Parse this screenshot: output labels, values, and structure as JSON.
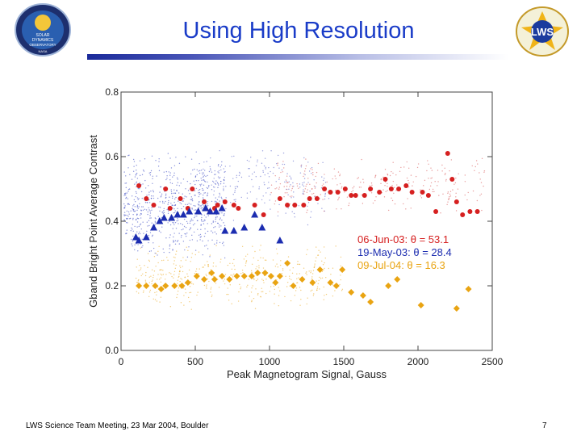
{
  "slide": {
    "title": "Using High Resolution",
    "footer_left": "LWS Science Team Meeting, 23 Mar 2004, Boulder",
    "page_number": "7",
    "logos": [
      {
        "name": "sdo-logo",
        "text_lines": [
          "SOLAR",
          "DYNAMICS",
          "OBSERVATORY",
          "NASA"
        ]
      },
      {
        "name": "lws-logo",
        "text_lines": [
          "LWS"
        ]
      }
    ]
  },
  "chart_data": {
    "type": "scatter",
    "xlabel": "Peak Magnetogram Signal, Gauss",
    "ylabel": "Gband Bright Point Average Contrast",
    "xlim": [
      0,
      2500
    ],
    "ylim": [
      0.0,
      0.8
    ],
    "xticks": [
      0,
      500,
      1000,
      1500,
      2000,
      2500
    ],
    "yticks": [
      0.0,
      0.2,
      0.4,
      0.6,
      0.8
    ],
    "xtick_labels": [
      "0",
      "500",
      "1000",
      "1500",
      "2000",
      "2500"
    ],
    "ytick_labels": [
      "0.0",
      "0.2",
      "0.4",
      "0.6",
      "0.8"
    ],
    "legend_position": "right-middle",
    "series": [
      {
        "name": "06-Jun-03: θ = 53.1",
        "color": "#d62020",
        "marker": "circle",
        "points": [
          [
            120,
            0.51
          ],
          [
            170,
            0.47
          ],
          [
            220,
            0.45
          ],
          [
            300,
            0.5
          ],
          [
            330,
            0.44
          ],
          [
            400,
            0.47
          ],
          [
            450,
            0.44
          ],
          [
            480,
            0.5
          ],
          [
            560,
            0.46
          ],
          [
            600,
            0.43
          ],
          [
            630,
            0.44
          ],
          [
            650,
            0.45
          ],
          [
            700,
            0.46
          ],
          [
            760,
            0.45
          ],
          [
            790,
            0.44
          ],
          [
            900,
            0.45
          ],
          [
            960,
            0.42
          ],
          [
            1070,
            0.47
          ],
          [
            1120,
            0.45
          ],
          [
            1170,
            0.45
          ],
          [
            1230,
            0.45
          ],
          [
            1270,
            0.47
          ],
          [
            1320,
            0.47
          ],
          [
            1370,
            0.5
          ],
          [
            1410,
            0.49
          ],
          [
            1460,
            0.49
          ],
          [
            1510,
            0.5
          ],
          [
            1550,
            0.48
          ],
          [
            1580,
            0.48
          ],
          [
            1640,
            0.48
          ],
          [
            1680,
            0.5
          ],
          [
            1740,
            0.49
          ],
          [
            1780,
            0.53
          ],
          [
            1820,
            0.5
          ],
          [
            1870,
            0.5
          ],
          [
            1920,
            0.51
          ],
          [
            1960,
            0.49
          ],
          [
            2030,
            0.49
          ],
          [
            2070,
            0.48
          ],
          [
            2120,
            0.43
          ],
          [
            2200,
            0.61
          ],
          [
            2230,
            0.53
          ],
          [
            2260,
            0.46
          ],
          [
            2300,
            0.42
          ],
          [
            2350,
            0.43
          ],
          [
            2400,
            0.43
          ]
        ]
      },
      {
        "name": "19-May-03: θ = 28.4",
        "color": "#1c2db0",
        "marker": "triangle",
        "points": [
          [
            100,
            0.35
          ],
          [
            120,
            0.34
          ],
          [
            170,
            0.35
          ],
          [
            220,
            0.38
          ],
          [
            260,
            0.4
          ],
          [
            290,
            0.41
          ],
          [
            340,
            0.41
          ],
          [
            380,
            0.42
          ],
          [
            420,
            0.42
          ],
          [
            460,
            0.43
          ],
          [
            520,
            0.43
          ],
          [
            570,
            0.44
          ],
          [
            600,
            0.43
          ],
          [
            640,
            0.43
          ],
          [
            680,
            0.44
          ],
          [
            700,
            0.37
          ],
          [
            760,
            0.37
          ],
          [
            830,
            0.38
          ],
          [
            900,
            0.42
          ],
          [
            950,
            0.38
          ],
          [
            1070,
            0.34
          ]
        ]
      },
      {
        "name": "09-Jul-04: θ = 16.3",
        "color": "#e9a412",
        "marker": "diamond",
        "points": [
          [
            120,
            0.2
          ],
          [
            170,
            0.2
          ],
          [
            230,
            0.2
          ],
          [
            270,
            0.19
          ],
          [
            300,
            0.2
          ],
          [
            360,
            0.2
          ],
          [
            410,
            0.2
          ],
          [
            450,
            0.21
          ],
          [
            510,
            0.23
          ],
          [
            560,
            0.22
          ],
          [
            610,
            0.24
          ],
          [
            630,
            0.22
          ],
          [
            680,
            0.23
          ],
          [
            730,
            0.22
          ],
          [
            780,
            0.23
          ],
          [
            830,
            0.23
          ],
          [
            880,
            0.23
          ],
          [
            920,
            0.24
          ],
          [
            970,
            0.24
          ],
          [
            1010,
            0.23
          ],
          [
            1040,
            0.21
          ],
          [
            1070,
            0.23
          ],
          [
            1120,
            0.27
          ],
          [
            1160,
            0.2
          ],
          [
            1220,
            0.22
          ],
          [
            1290,
            0.21
          ],
          [
            1340,
            0.25
          ],
          [
            1410,
            0.21
          ],
          [
            1450,
            0.2
          ],
          [
            1490,
            0.25
          ],
          [
            1550,
            0.18
          ],
          [
            1630,
            0.17
          ],
          [
            1680,
            0.15
          ],
          [
            1800,
            0.2
          ],
          [
            1860,
            0.22
          ],
          [
            2020,
            0.14
          ],
          [
            2260,
            0.13
          ],
          [
            2340,
            0.19
          ]
        ]
      }
    ]
  }
}
